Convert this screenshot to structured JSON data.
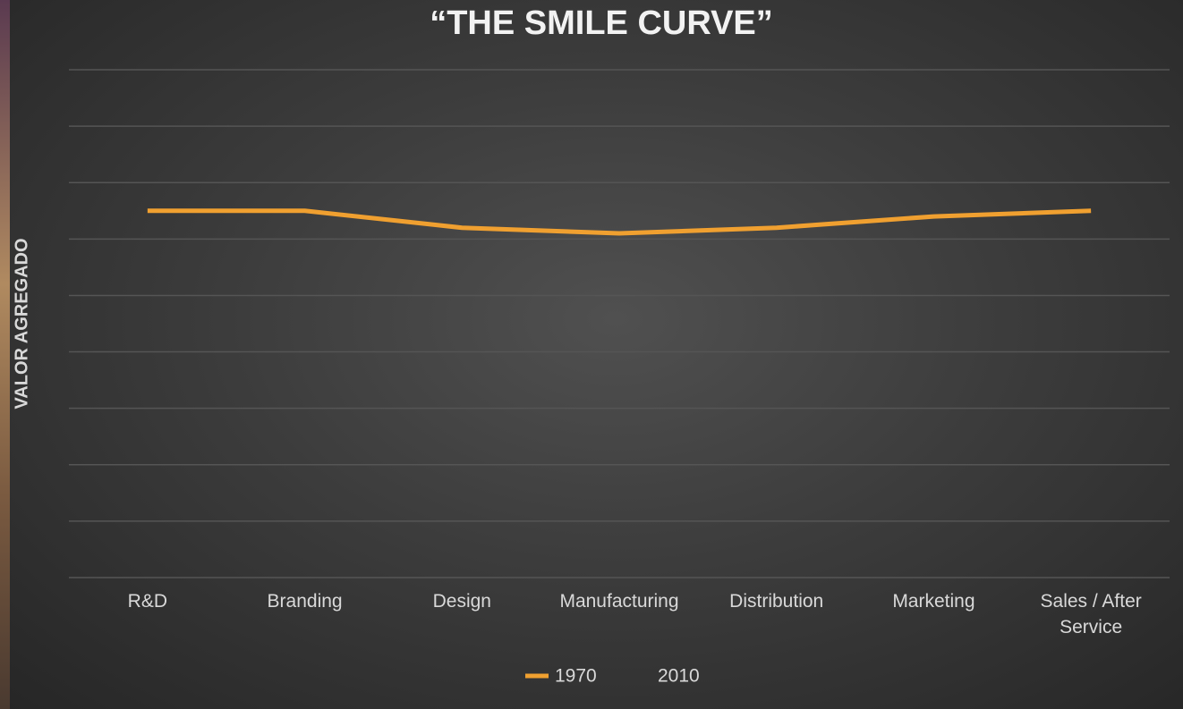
{
  "chart_data": {
    "type": "line",
    "title": "“THE SMILE CURVE”",
    "y_label": "VALOR AGREGADO",
    "categories": [
      "R&D",
      "Branding",
      "Design",
      "Manufacturing",
      "Distribution",
      "Marketing",
      "Sales / After Service"
    ],
    "series": [
      {
        "name": "1970",
        "color": "#f0a030",
        "values": [
          6.5,
          6.5,
          6.2,
          6.1,
          6.2,
          6.4,
          6.5
        ]
      },
      {
        "name": "2010",
        "color": null,
        "values": [
          null,
          null,
          null,
          null,
          null,
          null,
          null
        ]
      }
    ],
    "ylim": [
      0,
      9
    ],
    "yticks": [
      0,
      1,
      2,
      3,
      4,
      5,
      6,
      7,
      8,
      9
    ],
    "ytick_labels": false,
    "grid": true,
    "legend": "bottom"
  }
}
